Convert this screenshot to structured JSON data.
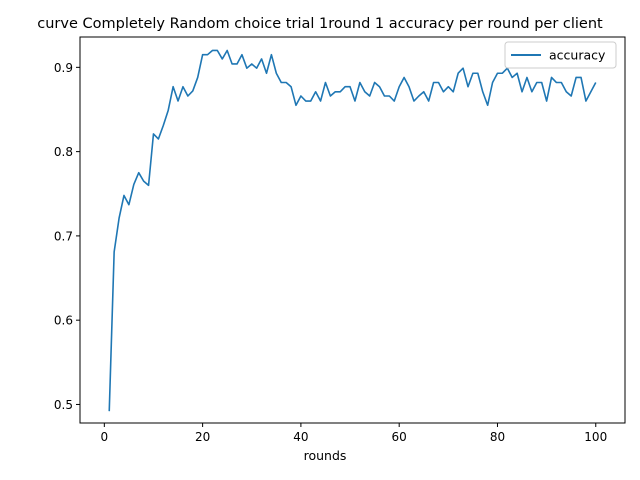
{
  "chart_data": {
    "type": "line",
    "title": "curve Completely Random choice trial 1round 1 accuracy per round per client",
    "xlabel": "rounds",
    "ylabel": "",
    "xlim": [
      -4.95,
      105.95
    ],
    "ylim": [
      0.478,
      0.936
    ],
    "xticks": [
      0,
      20,
      40,
      60,
      80,
      100
    ],
    "yticks": [
      0.5,
      0.6,
      0.7,
      0.8,
      0.9
    ],
    "xtick_labels": [
      "0",
      "20",
      "40",
      "60",
      "80",
      "100"
    ],
    "ytick_labels": [
      "0.5",
      "0.6",
      "0.7",
      "0.8",
      "0.9"
    ],
    "grid": false,
    "legend_position": "top-right",
    "line_color": "#1f77b4",
    "series": [
      {
        "name": "accuracy",
        "x": [
          1,
          2,
          3,
          4,
          5,
          6,
          7,
          8,
          9,
          10,
          11,
          12,
          13,
          14,
          15,
          16,
          17,
          18,
          19,
          20,
          21,
          22,
          23,
          24,
          25,
          26,
          27,
          28,
          29,
          30,
          31,
          32,
          33,
          34,
          35,
          36,
          37,
          38,
          39,
          40,
          41,
          42,
          43,
          44,
          45,
          46,
          47,
          48,
          49,
          50,
          51,
          52,
          53,
          54,
          55,
          56,
          57,
          58,
          59,
          60,
          61,
          62,
          63,
          64,
          65,
          66,
          67,
          68,
          69,
          70,
          71,
          72,
          73,
          74,
          75,
          76,
          77,
          78,
          79,
          80,
          81,
          82,
          83,
          84,
          85,
          86,
          87,
          88,
          89,
          90,
          91,
          92,
          93,
          94,
          95,
          96,
          97,
          98,
          99,
          100
        ],
        "values": [
          0.492,
          0.681,
          0.721,
          0.748,
          0.737,
          0.761,
          0.775,
          0.765,
          0.76,
          0.821,
          0.815,
          0.831,
          0.849,
          0.877,
          0.86,
          0.877,
          0.866,
          0.872,
          0.888,
          0.915,
          0.915,
          0.92,
          0.92,
          0.91,
          0.92,
          0.904,
          0.904,
          0.915,
          0.899,
          0.904,
          0.899,
          0.91,
          0.893,
          0.915,
          0.893,
          0.882,
          0.882,
          0.877,
          0.855,
          0.866,
          0.86,
          0.86,
          0.871,
          0.86,
          0.882,
          0.866,
          0.871,
          0.871,
          0.877,
          0.877,
          0.86,
          0.882,
          0.871,
          0.866,
          0.882,
          0.877,
          0.866,
          0.866,
          0.86,
          0.877,
          0.888,
          0.877,
          0.86,
          0.866,
          0.871,
          0.86,
          0.882,
          0.882,
          0.871,
          0.877,
          0.871,
          0.893,
          0.899,
          0.877,
          0.893,
          0.893,
          0.871,
          0.855,
          0.882,
          0.893,
          0.893,
          0.899,
          0.888,
          0.893,
          0.871,
          0.888,
          0.871,
          0.882,
          0.882,
          0.86,
          0.888,
          0.882,
          0.882,
          0.871,
          0.866,
          0.888,
          0.888,
          0.86,
          0.871,
          0.882
        ]
      }
    ]
  }
}
